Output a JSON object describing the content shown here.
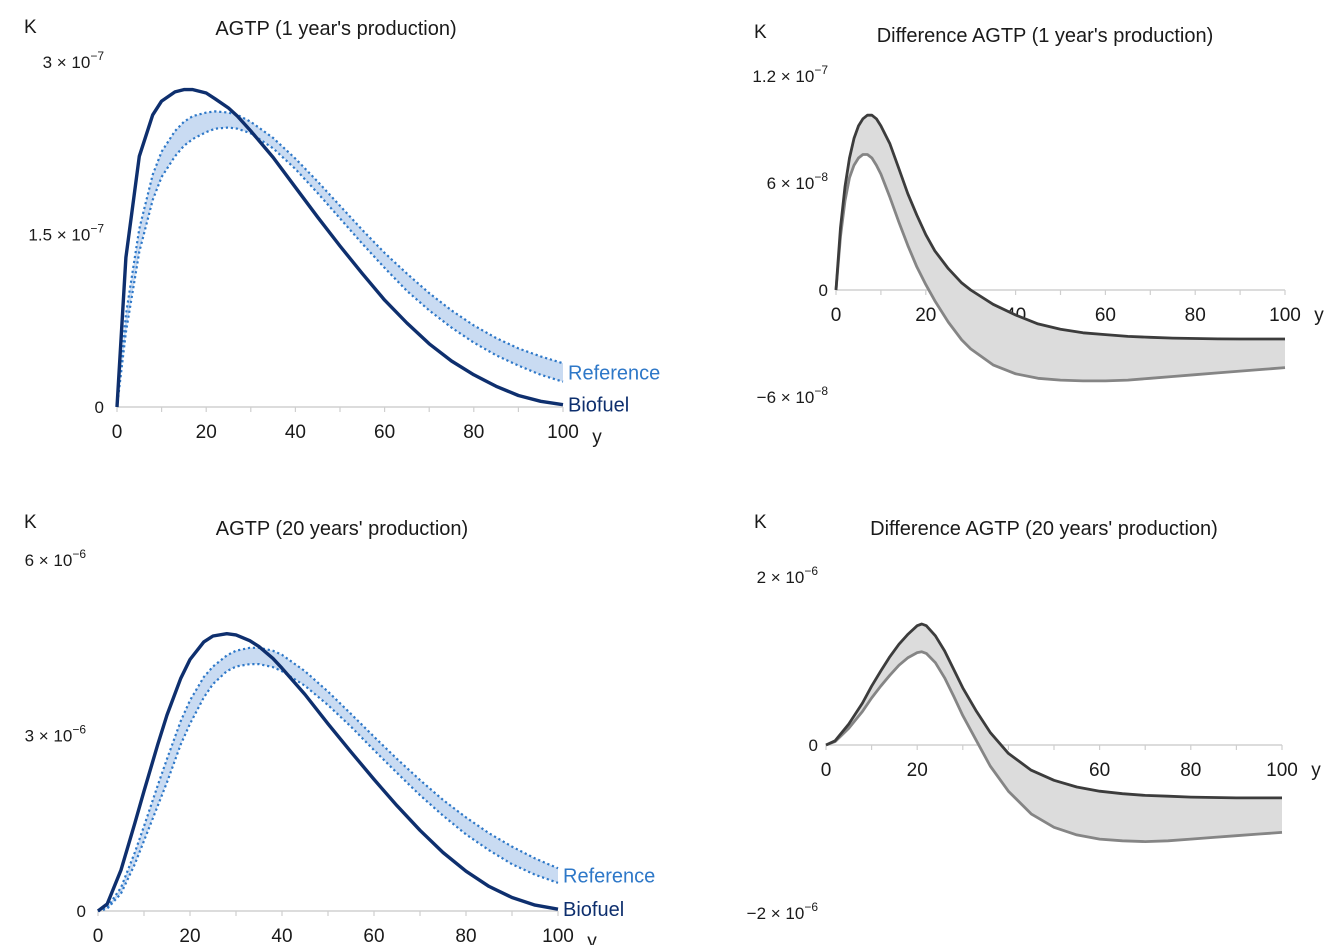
{
  "chart_data": [
    {
      "id": "p1",
      "type": "area",
      "title": "AGTP (1 year's production)",
      "ylabel": "K",
      "xlabel": "y",
      "xlim": [
        0,
        100
      ],
      "ylim": [
        0,
        3e-07
      ],
      "x_ticks": [
        "0",
        "20",
        "40",
        "60",
        "80",
        "100"
      ],
      "y_tick_labels": [
        {
          "value": 3e-07,
          "label": "3 × 10",
          "exp": "−7"
        },
        {
          "value": 1.5e-07,
          "label": "1.5 × 10",
          "exp": "−7"
        },
        {
          "value": 0,
          "label": "0",
          "exp": ""
        }
      ],
      "x": [
        0,
        2,
        5,
        8,
        10,
        13,
        15,
        17,
        20,
        22,
        25,
        27,
        30,
        35,
        40,
        45,
        50,
        55,
        60,
        65,
        70,
        75,
        80,
        85,
        90,
        95,
        100
      ],
      "series": [
        {
          "name": "Biofuel",
          "role": "line",
          "values": [
            0,
            1.3e-07,
            2.18e-07,
            2.54e-07,
            2.66e-07,
            2.74e-07,
            2.76e-07,
            2.76e-07,
            2.73e-07,
            2.68e-07,
            2.6e-07,
            2.53e-07,
            2.4e-07,
            2.17e-07,
            1.91e-07,
            1.65e-07,
            1.4e-07,
            1.16e-07,
            9.3e-08,
            7.3e-08,
            5.5e-08,
            4e-08,
            2.8e-08,
            1.8e-08,
            1e-08,
            5e-09,
            2e-09
          ]
        },
        {
          "name": "Reference",
          "role": "band-upper",
          "values": [
            0,
            8e-08,
            1.55e-07,
            2.02e-07,
            2.22e-07,
            2.4e-07,
            2.48e-07,
            2.53e-07,
            2.56e-07,
            2.57e-07,
            2.56e-07,
            2.54e-07,
            2.48e-07,
            2.34e-07,
            2.16e-07,
            1.96e-07,
            1.75e-07,
            1.54e-07,
            1.34e-07,
            1.16e-07,
            9.9e-08,
            8.4e-08,
            7.1e-08,
            6e-08,
            5.1e-08,
            4.4e-08,
            3.8e-08
          ]
        },
        {
          "name": "Reference",
          "role": "band-lower",
          "values": [
            0,
            6.5e-08,
            1.35e-07,
            1.8e-07,
            2e-07,
            2.18e-07,
            2.27e-07,
            2.33e-07,
            2.39e-07,
            2.42e-07,
            2.43e-07,
            2.42e-07,
            2.38e-07,
            2.25e-07,
            2.07e-07,
            1.86e-07,
            1.64e-07,
            1.42e-07,
            1.21e-07,
            1.01e-07,
            8.4e-08,
            6.9e-08,
            5.6e-08,
            4.5e-08,
            3.6e-08,
            2.8e-08,
            2.2e-08
          ]
        }
      ],
      "labels": {
        "upper": "Reference",
        "lower": "Biofuel"
      },
      "colors": {
        "line": "#0e2f6e",
        "band_fill": "#c9dbf2",
        "band_line": "#2e78c8",
        "label_upper": "#2e78c8",
        "label_lower": "#0e2f6e"
      }
    },
    {
      "id": "p2",
      "type": "area",
      "title": "Difference AGTP (1 year's production)",
      "ylabel": "K",
      "xlabel": "y",
      "xlim": [
        0,
        100
      ],
      "ylim": [
        -6e-08,
        1.2e-07
      ],
      "x_ticks": [
        "0",
        "20",
        "40",
        "60",
        "80",
        "100"
      ],
      "y_tick_labels": [
        {
          "value": 1.2e-07,
          "label": "1.2 × 10",
          "exp": "−7"
        },
        {
          "value": 6e-08,
          "label": "6 × 10",
          "exp": "−8"
        },
        {
          "value": 0,
          "label": "0",
          "exp": ""
        },
        {
          "value": -6e-08,
          "label": "−6 × 10",
          "exp": "−8"
        }
      ],
      "x": [
        0,
        1,
        2,
        3,
        4,
        5,
        6,
        7,
        8,
        9,
        10,
        12,
        14,
        16,
        18,
        20,
        22,
        25,
        28,
        30,
        35,
        40,
        45,
        50,
        55,
        60,
        65,
        70,
        75,
        80,
        85,
        90,
        95,
        100
      ],
      "series": [
        {
          "name": "upper",
          "role": "band-upper",
          "values": [
            0,
            3.5e-08,
            5.8e-08,
            7.4e-08,
            8.5e-08,
            9.2e-08,
            9.6e-08,
            9.8e-08,
            9.8e-08,
            9.6e-08,
            9.2e-08,
            8.2e-08,
            6.8e-08,
            5.4e-08,
            4.2e-08,
            3.1e-08,
            2.2e-08,
            1.2e-08,
            4e-09,
            0,
            -8e-09,
            -1.4e-08,
            -1.9e-08,
            -2.2e-08,
            -2.4e-08,
            -2.5e-08,
            -2.6e-08,
            -2.65e-08,
            -2.7e-08,
            -2.72e-08,
            -2.74e-08,
            -2.75e-08,
            -2.75e-08,
            -2.75e-08
          ]
        },
        {
          "name": "lower",
          "role": "band-lower",
          "values": [
            0,
            3e-08,
            5e-08,
            6.3e-08,
            7e-08,
            7.4e-08,
            7.6e-08,
            7.6e-08,
            7.4e-08,
            7e-08,
            6.5e-08,
            5.2e-08,
            3.8e-08,
            2.5e-08,
            1.3e-08,
            3e-09,
            -6e-09,
            -1.8e-08,
            -2.8e-08,
            -3.3e-08,
            -4.2e-08,
            -4.7e-08,
            -4.95e-08,
            -5.05e-08,
            -5.1e-08,
            -5.1e-08,
            -5.05e-08,
            -4.95e-08,
            -4.85e-08,
            -4.75e-08,
            -4.65e-08,
            -4.55e-08,
            -4.45e-08,
            -4.35e-08
          ]
        }
      ],
      "colors": {
        "band_fill": "#dcdcdc",
        "upper_line": "#3c3c3c",
        "lower_line": "#858585"
      }
    },
    {
      "id": "p3",
      "type": "area",
      "title": "AGTP (20 years' production)",
      "ylabel": "K",
      "xlabel": "y",
      "xlim": [
        0,
        100
      ],
      "ylim": [
        0,
        6e-06
      ],
      "x_ticks": [
        "0",
        "20",
        "40",
        "60",
        "80",
        "100"
      ],
      "y_tick_labels": [
        {
          "value": 6e-06,
          "label": "6 × 10",
          "exp": "−6"
        },
        {
          "value": 3e-06,
          "label": "3 × 10",
          "exp": "−6"
        },
        {
          "value": 0,
          "label": "0",
          "exp": ""
        }
      ],
      "x": [
        0,
        2,
        5,
        8,
        10,
        13,
        15,
        18,
        20,
        23,
        25,
        28,
        30,
        33,
        35,
        38,
        40,
        45,
        50,
        55,
        60,
        65,
        70,
        75,
        80,
        85,
        90,
        95,
        100
      ],
      "series": [
        {
          "name": "Biofuel",
          "role": "line",
          "values": [
            0,
            1.2e-07,
            7e-07,
            1.5e-06,
            2.05e-06,
            2.85e-06,
            3.35e-06,
            3.98e-06,
            4.3e-06,
            4.6e-06,
            4.7e-06,
            4.74e-06,
            4.72e-06,
            4.62e-06,
            4.52e-06,
            4.32e-06,
            4.15e-06,
            3.7e-06,
            3.2e-06,
            2.72e-06,
            2.25e-06,
            1.8e-06,
            1.38e-06,
            1e-06,
            6.8e-07,
            4.2e-07,
            2.3e-07,
            1e-07,
            3e-08
          ]
        },
        {
          "name": "Reference",
          "role": "band-upper",
          "values": [
            0,
            6e-08,
            4e-07,
            1e-06,
            1.45e-06,
            2.15e-06,
            2.6e-06,
            3.25e-06,
            3.6e-06,
            4e-06,
            4.18e-06,
            4.37e-06,
            4.45e-06,
            4.5e-06,
            4.5e-06,
            4.45e-06,
            4.38e-06,
            4.1e-06,
            3.75e-06,
            3.37e-06,
            2.98e-06,
            2.6e-06,
            2.24e-06,
            1.9e-06,
            1.6e-06,
            1.33e-06,
            1.1e-06,
            9e-07,
            7.3e-07
          ]
        },
        {
          "name": "Reference",
          "role": "band-lower",
          "values": [
            0,
            4e-08,
            3e-07,
            8e-07,
            1.2e-06,
            1.8e-06,
            2.2e-06,
            2.85e-06,
            3.2e-06,
            3.65e-06,
            3.88e-06,
            4.1e-06,
            4.18e-06,
            4.22e-06,
            4.22e-06,
            4.17e-06,
            4.1e-06,
            3.85e-06,
            3.52e-06,
            3.15e-06,
            2.75e-06,
            2.36e-06,
            1.98e-06,
            1.63e-06,
            1.31e-06,
            1.04e-06,
            8e-07,
            6.2e-07,
            4.8e-07
          ]
        }
      ],
      "labels": {
        "upper": "Reference",
        "lower": "Biofuel"
      },
      "colors": {
        "line": "#0e2f6e",
        "band_fill": "#c9dbf2",
        "band_line": "#2e78c8",
        "label_upper": "#2e78c8",
        "label_lower": "#0e2f6e"
      }
    },
    {
      "id": "p4",
      "type": "area",
      "title": "Difference AGTP (20 years' production)",
      "ylabel": "K",
      "xlabel": "y",
      "xlim": [
        0,
        100
      ],
      "ylim": [
        -2e-06,
        2e-06
      ],
      "x_ticks": [
        "0",
        "20",
        "40",
        "60",
        "80",
        "100"
      ],
      "y_tick_labels": [
        {
          "value": 2e-06,
          "label": "2 × 10",
          "exp": "−6"
        },
        {
          "value": 0,
          "label": "0",
          "exp": ""
        },
        {
          "value": -2e-06,
          "label": "−2 × 10",
          "exp": "−6"
        }
      ],
      "x": [
        0,
        2,
        5,
        8,
        10,
        12,
        14,
        16,
        18,
        20,
        21,
        22,
        24,
        26,
        28,
        30,
        33,
        36,
        40,
        45,
        50,
        55,
        60,
        65,
        70,
        75,
        80,
        85,
        90,
        95,
        100
      ],
      "series": [
        {
          "name": "upper",
          "role": "band-upper",
          "values": [
            0,
            5e-08,
            2.5e-07,
            5e-07,
            7e-07,
            8.8e-07,
            1.05e-06,
            1.2e-06,
            1.32e-06,
            1.42e-06,
            1.44e-06,
            1.42e-06,
            1.3e-06,
            1.12e-06,
            9e-07,
            6.8e-07,
            4e-07,
            1.5e-07,
            -1e-07,
            -3e-07,
            -4.2e-07,
            -5e-07,
            -5.5e-07,
            -5.8e-07,
            -6e-07,
            -6.1e-07,
            -6.2e-07,
            -6.25e-07,
            -6.3e-07,
            -6.3e-07,
            -6.3e-07
          ]
        },
        {
          "name": "lower",
          "role": "band-lower",
          "values": [
            0,
            4e-08,
            2e-07,
            4e-07,
            5.6e-07,
            7e-07,
            8.3e-07,
            9.5e-07,
            1.04e-06,
            1.1e-06,
            1.11e-06,
            1.09e-06,
            9.8e-07,
            8e-07,
            5.8e-07,
            3.5e-07,
            5e-08,
            -2.5e-07,
            -5.5e-07,
            -8.2e-07,
            -9.8e-07,
            -1.07e-06,
            -1.12e-06,
            -1.14e-06,
            -1.15e-06,
            -1.14e-06,
            -1.12e-06,
            -1.1e-06,
            -1.08e-06,
            -1.06e-06,
            -1.04e-06
          ]
        }
      ],
      "colors": {
        "band_fill": "#dcdcdc",
        "upper_line": "#3c3c3c",
        "lower_line": "#858585"
      }
    }
  ]
}
